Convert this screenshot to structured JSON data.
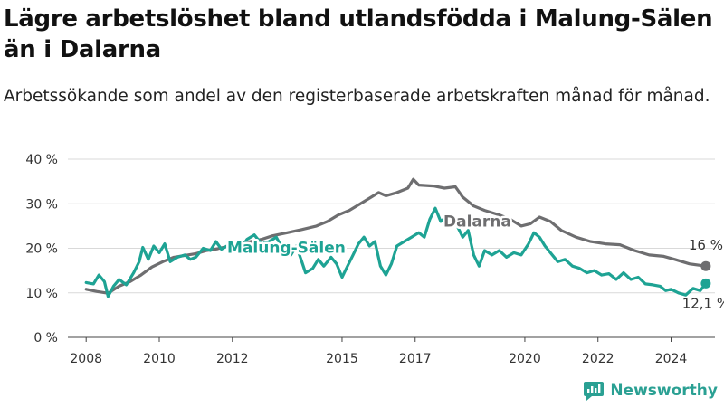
{
  "header": {
    "title": "Lägre arbetslöshet bland utlandsfödda i Malung-Sälen än i Dalarna",
    "subtitle": "Arbetssökande som andel av den registerbaserade arbetskraften månad för månad."
  },
  "brand": {
    "name": "Newsworthy",
    "icon": "newsworthy-logo-icon"
  },
  "colors": {
    "dalarna": "#6e6e70",
    "malung": "#1ea394",
    "grid": "#d9d9d9",
    "text": "#333333",
    "brand": "#2aa093"
  },
  "chart_data": {
    "type": "line",
    "title": "Lägre arbetslöshet bland utlandsfödda i Malung-Sälen än i Dalarna",
    "subtitle": "Arbetssökande som andel av den registerbaserade arbetskraften månad för månad.",
    "xlabel": "",
    "ylabel": "",
    "ylim": [
      0,
      40
    ],
    "xlim": [
      2007.5,
      2025.2
    ],
    "grid": true,
    "y_ticks": [
      0,
      10,
      20,
      30,
      40
    ],
    "y_tick_labels": [
      "0 %",
      "10 %",
      "20 %",
      "30 %",
      "40 %"
    ],
    "x_ticks": [
      2008,
      2010,
      2012,
      2015,
      2017,
      2020,
      2022,
      2024
    ],
    "x_tick_labels": [
      "2008",
      "2010",
      "2012",
      "2015",
      "2017",
      "2020",
      "2022",
      "2024"
    ],
    "series": [
      {
        "name": "Dalarna",
        "end_label": "16 %",
        "points": [
          [
            2008.0,
            10.8
          ],
          [
            2008.3,
            10.3
          ],
          [
            2008.6,
            9.9
          ],
          [
            2008.9,
            11.5
          ],
          [
            2009.2,
            12.5
          ],
          [
            2009.5,
            14.0
          ],
          [
            2009.8,
            15.8
          ],
          [
            2010.1,
            17.0
          ],
          [
            2010.4,
            18.0
          ],
          [
            2010.7,
            18.4
          ],
          [
            2011.0,
            18.8
          ],
          [
            2011.3,
            19.5
          ],
          [
            2011.6,
            19.9
          ],
          [
            2011.9,
            20.5
          ],
          [
            2012.2,
            21.0
          ],
          [
            2012.5,
            21.5
          ],
          [
            2012.8,
            22.0
          ],
          [
            2013.1,
            22.8
          ],
          [
            2013.5,
            23.5
          ],
          [
            2013.9,
            24.2
          ],
          [
            2014.3,
            25.0
          ],
          [
            2014.6,
            26.0
          ],
          [
            2014.9,
            27.5
          ],
          [
            2015.2,
            28.5
          ],
          [
            2015.5,
            30.0
          ],
          [
            2015.8,
            31.5
          ],
          [
            2016.0,
            32.5
          ],
          [
            2016.2,
            31.8
          ],
          [
            2016.5,
            32.5
          ],
          [
            2016.8,
            33.5
          ],
          [
            2016.95,
            35.5
          ],
          [
            2017.1,
            34.2
          ],
          [
            2017.5,
            34.0
          ],
          [
            2017.8,
            33.5
          ],
          [
            2018.1,
            33.8
          ],
          [
            2018.3,
            31.5
          ],
          [
            2018.6,
            29.5
          ],
          [
            2018.9,
            28.5
          ],
          [
            2019.1,
            28.0
          ],
          [
            2019.3,
            27.5
          ],
          [
            2019.6,
            26.5
          ],
          [
            2019.9,
            25.0
          ],
          [
            2020.15,
            25.5
          ],
          [
            2020.4,
            27.0
          ],
          [
            2020.7,
            26.0
          ],
          [
            2021.0,
            24.0
          ],
          [
            2021.4,
            22.5
          ],
          [
            2021.8,
            21.5
          ],
          [
            2022.2,
            21.0
          ],
          [
            2022.6,
            20.8
          ],
          [
            2023.0,
            19.5
          ],
          [
            2023.4,
            18.5
          ],
          [
            2023.8,
            18.2
          ],
          [
            2024.1,
            17.5
          ],
          [
            2024.5,
            16.5
          ],
          [
            2024.95,
            16.0
          ]
        ]
      },
      {
        "name": "Malung-Sälen",
        "end_label": "12,1 %",
        "points": [
          [
            2008.0,
            12.3
          ],
          [
            2008.2,
            12.0
          ],
          [
            2008.35,
            14.0
          ],
          [
            2008.5,
            12.5
          ],
          [
            2008.6,
            9.2
          ],
          [
            2008.75,
            11.5
          ],
          [
            2008.9,
            13.0
          ],
          [
            2009.1,
            11.8
          ],
          [
            2009.3,
            14.5
          ],
          [
            2009.45,
            17.0
          ],
          [
            2009.55,
            20.2
          ],
          [
            2009.7,
            17.5
          ],
          [
            2009.85,
            20.5
          ],
          [
            2010.0,
            19.0
          ],
          [
            2010.15,
            21.0
          ],
          [
            2010.3,
            17.0
          ],
          [
            2010.5,
            18.0
          ],
          [
            2010.7,
            18.5
          ],
          [
            2010.85,
            17.5
          ],
          [
            2011.0,
            18.0
          ],
          [
            2011.2,
            20.0
          ],
          [
            2011.4,
            19.5
          ],
          [
            2011.55,
            21.5
          ],
          [
            2011.7,
            19.8
          ],
          [
            2011.85,
            20.5
          ],
          [
            2012.0,
            21.0
          ],
          [
            2012.2,
            19.5
          ],
          [
            2012.4,
            22.0
          ],
          [
            2012.6,
            23.0
          ],
          [
            2012.8,
            21.0
          ],
          [
            2013.0,
            21.5
          ],
          [
            2013.2,
            22.5
          ],
          [
            2013.4,
            19.5
          ],
          [
            2013.6,
            18.5
          ],
          [
            2013.75,
            20.5
          ],
          [
            2013.9,
            17.0
          ],
          [
            2014.0,
            14.5
          ],
          [
            2014.2,
            15.5
          ],
          [
            2014.35,
            17.5
          ],
          [
            2014.5,
            16.0
          ],
          [
            2014.7,
            18.0
          ],
          [
            2014.85,
            16.5
          ],
          [
            2015.0,
            13.5
          ],
          [
            2015.15,
            16.0
          ],
          [
            2015.3,
            18.5
          ],
          [
            2015.45,
            21.0
          ],
          [
            2015.6,
            22.5
          ],
          [
            2015.75,
            20.5
          ],
          [
            2015.9,
            21.5
          ],
          [
            2016.05,
            16.0
          ],
          [
            2016.2,
            14.0
          ],
          [
            2016.35,
            16.5
          ],
          [
            2016.5,
            20.5
          ],
          [
            2016.7,
            21.5
          ],
          [
            2016.9,
            22.5
          ],
          [
            2017.1,
            23.5
          ],
          [
            2017.25,
            22.5
          ],
          [
            2017.4,
            26.5
          ],
          [
            2017.55,
            29.0
          ],
          [
            2017.7,
            26.0
          ],
          [
            2017.85,
            27.0
          ],
          [
            2018.0,
            27.5
          ],
          [
            2018.15,
            25.0
          ],
          [
            2018.3,
            22.5
          ],
          [
            2018.45,
            24.0
          ],
          [
            2018.6,
            18.5
          ],
          [
            2018.75,
            16.0
          ],
          [
            2018.9,
            19.5
          ],
          [
            2019.1,
            18.5
          ],
          [
            2019.3,
            19.5
          ],
          [
            2019.5,
            18.0
          ],
          [
            2019.7,
            19.0
          ],
          [
            2019.9,
            18.5
          ],
          [
            2020.1,
            21.0
          ],
          [
            2020.25,
            23.5
          ],
          [
            2020.4,
            22.5
          ],
          [
            2020.55,
            20.5
          ],
          [
            2020.7,
            19.0
          ],
          [
            2020.9,
            17.0
          ],
          [
            2021.1,
            17.5
          ],
          [
            2021.3,
            16.0
          ],
          [
            2021.5,
            15.5
          ],
          [
            2021.7,
            14.5
          ],
          [
            2021.9,
            15.0
          ],
          [
            2022.1,
            14.0
          ],
          [
            2022.3,
            14.3
          ],
          [
            2022.5,
            13.0
          ],
          [
            2022.7,
            14.5
          ],
          [
            2022.9,
            13.0
          ],
          [
            2023.1,
            13.5
          ],
          [
            2023.3,
            12.0
          ],
          [
            2023.5,
            11.8
          ],
          [
            2023.7,
            11.5
          ],
          [
            2023.85,
            10.5
          ],
          [
            2024.0,
            10.8
          ],
          [
            2024.2,
            10.0
          ],
          [
            2024.4,
            9.5
          ],
          [
            2024.6,
            11.0
          ],
          [
            2024.8,
            10.5
          ],
          [
            2024.95,
            12.1
          ]
        ]
      }
    ],
    "annotations": [
      "Dalarna",
      "Malung-Sälen"
    ]
  }
}
